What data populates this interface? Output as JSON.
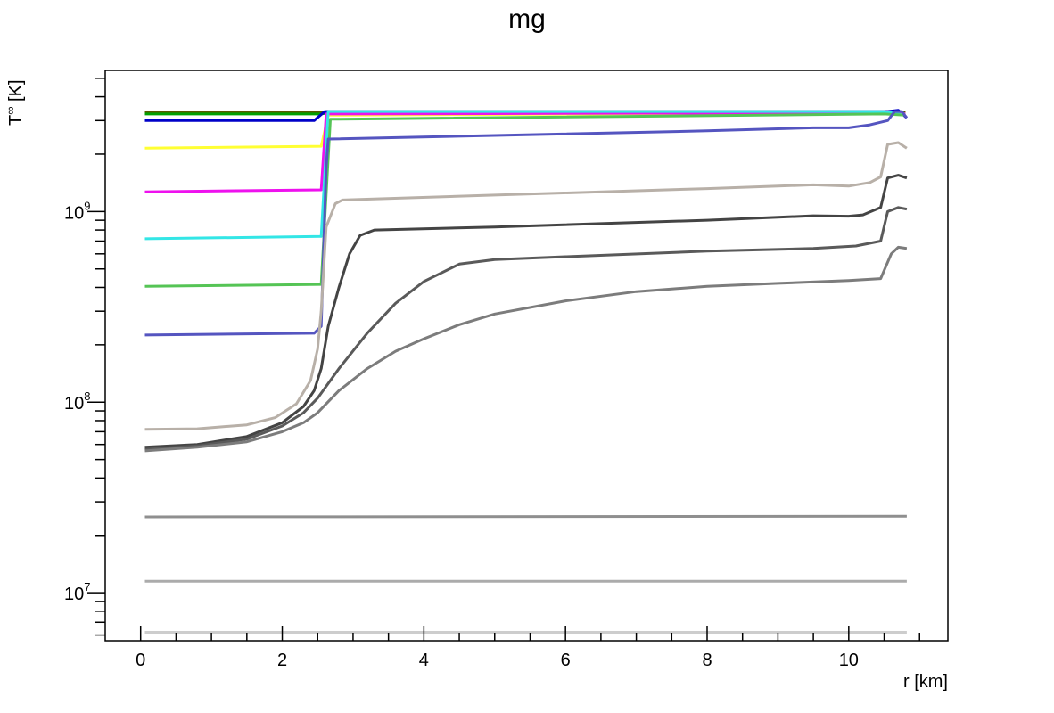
{
  "chart_data": {
    "type": "line",
    "title": "mg",
    "xlabel": "r [km]",
    "ylabel_main": "T",
    "ylabel_sup": "∞",
    "ylabel_unit": " [K]",
    "yscale": "log",
    "xlim": [
      -0.5,
      11.4
    ],
    "ylim": [
      5600000.0,
      5500000000.0
    ],
    "xticks": [
      0,
      2,
      4,
      6,
      8,
      10
    ],
    "xtick_labels": [
      "0",
      "2",
      "4",
      "6",
      "8",
      "10"
    ],
    "yticks": [
      {
        "value": 10000000.0,
        "base": "10",
        "exp": "7"
      },
      {
        "value": 100000000.0,
        "base": "10",
        "exp": "8"
      },
      {
        "value": 1000000000.0,
        "base": "10",
        "exp": "9"
      }
    ],
    "grid": false,
    "legend": "none",
    "series": [
      {
        "color": "#5a5a00",
        "points": [
          [
            0.06,
            3300000000.0
          ],
          [
            2.55,
            3300000000.0
          ],
          [
            2.65,
            3350000000.0
          ],
          [
            10.5,
            3350000000.0
          ],
          [
            10.8,
            3300000000.0
          ]
        ]
      },
      {
        "color": "#00a000",
        "points": [
          [
            0.06,
            3250000000.0
          ],
          [
            2.55,
            3250000000.0
          ],
          [
            2.65,
            3300000000.0
          ],
          [
            10.5,
            3300000000.0
          ],
          [
            10.8,
            3250000000.0
          ]
        ]
      },
      {
        "color": "#0000c8",
        "points": [
          [
            0.06,
            3000000000.0
          ],
          [
            2.2,
            3000000000.0
          ],
          [
            2.45,
            3000000000.0
          ],
          [
            2.6,
            3350000000.0
          ],
          [
            10.55,
            3350000000.0
          ],
          [
            10.7,
            3400000000.0
          ],
          [
            10.82,
            3100000000.0
          ]
        ]
      },
      {
        "color": "#ffff33",
        "points": [
          [
            0.06,
            2150000000.0
          ],
          [
            2.55,
            2200000000.0
          ],
          [
            2.65,
            3200000000.0
          ],
          [
            10.5,
            3300000000.0
          ],
          [
            10.8,
            3250000000.0
          ]
        ]
      },
      {
        "color": "#ee11ee",
        "points": [
          [
            0.06,
            1270000000.0
          ],
          [
            2.55,
            1300000000.0
          ],
          [
            2.62,
            3250000000.0
          ],
          [
            10.5,
            3300000000.0
          ],
          [
            10.8,
            3250000000.0
          ]
        ]
      },
      {
        "color": "#33e6e6",
        "points": [
          [
            0.06,
            720000000.0
          ],
          [
            2.55,
            740000000.0
          ],
          [
            2.65,
            3350000000.0
          ],
          [
            10.5,
            3350000000.0
          ],
          [
            10.8,
            3200000000.0
          ]
        ]
      },
      {
        "color": "#55c455",
        "points": [
          [
            0.06,
            405000000.0
          ],
          [
            2.55,
            415000000.0
          ],
          [
            2.68,
            3050000000.0
          ],
          [
            10.5,
            3250000000.0
          ],
          [
            10.8,
            3200000000.0
          ]
        ]
      },
      {
        "color": "#5555c0",
        "points": [
          [
            0.06,
            225000000.0
          ],
          [
            2.45,
            230000000.0
          ],
          [
            2.55,
            250000000.0
          ],
          [
            2.62,
            1700000000.0
          ],
          [
            2.65,
            2400000000.0
          ],
          [
            8.0,
            2650000000.0
          ],
          [
            9.5,
            2750000000.0
          ],
          [
            10.0,
            2750000000.0
          ],
          [
            10.3,
            2850000000.0
          ],
          [
            10.55,
            3000000000.0
          ],
          [
            10.65,
            3350000000.0
          ],
          [
            10.75,
            3350000000.0
          ],
          [
            10.82,
            3100000000.0
          ]
        ]
      },
      {
        "color": "#b8b0a8",
        "points": [
          [
            0.06,
            72000000.0
          ],
          [
            0.8,
            72500000.0
          ],
          [
            1.5,
            76000000.0
          ],
          [
            1.9,
            83000000.0
          ],
          [
            2.2,
            98000000.0
          ],
          [
            2.4,
            130000000.0
          ],
          [
            2.5,
            190000000.0
          ],
          [
            2.55,
            300000000.0
          ],
          [
            2.62,
            830000000.0
          ],
          [
            2.75,
            1100000000.0
          ],
          [
            2.85,
            1150000000.0
          ],
          [
            5.0,
            1220000000.0
          ],
          [
            8.0,
            1320000000.0
          ],
          [
            9.5,
            1380000000.0
          ],
          [
            10.0,
            1360000000.0
          ],
          [
            10.3,
            1420000000.0
          ],
          [
            10.45,
            1520000000.0
          ],
          [
            10.55,
            2250000000.0
          ],
          [
            10.7,
            2300000000.0
          ],
          [
            10.82,
            2150000000.0
          ]
        ]
      },
      {
        "color": "#444444",
        "points": [
          [
            0.06,
            58000000.0
          ],
          [
            0.8,
            60000000.0
          ],
          [
            1.5,
            66000000.0
          ],
          [
            2.0,
            78000000.0
          ],
          [
            2.3,
            95000000.0
          ],
          [
            2.45,
            115000000.0
          ],
          [
            2.55,
            150000000.0
          ],
          [
            2.65,
            250000000.0
          ],
          [
            2.8,
            400000000.0
          ],
          [
            2.95,
            600000000.0
          ],
          [
            3.1,
            750000000.0
          ],
          [
            3.3,
            800000000.0
          ],
          [
            5.0,
            830000000.0
          ],
          [
            8.0,
            900000000.0
          ],
          [
            9.5,
            950000000.0
          ],
          [
            10.0,
            945000000.0
          ],
          [
            10.2,
            960000000.0
          ],
          [
            10.45,
            1050000000.0
          ],
          [
            10.55,
            1500000000.0
          ],
          [
            10.7,
            1550000000.0
          ],
          [
            10.82,
            1500000000.0
          ]
        ]
      },
      {
        "color": "#5a5a5a",
        "points": [
          [
            0.06,
            56500000.0
          ],
          [
            0.8,
            59000000.0
          ],
          [
            1.5,
            64000000.0
          ],
          [
            2.0,
            75000000.0
          ],
          [
            2.3,
            88000000.0
          ],
          [
            2.5,
            105000000.0
          ],
          [
            2.8,
            150000000.0
          ],
          [
            3.2,
            230000000.0
          ],
          [
            3.6,
            330000000.0
          ],
          [
            4.0,
            430000000.0
          ],
          [
            4.5,
            530000000.0
          ],
          [
            5.0,
            560000000.0
          ],
          [
            6.0,
            580000000.0
          ],
          [
            8.0,
            620000000.0
          ],
          [
            9.5,
            640000000.0
          ],
          [
            10.1,
            660000000.0
          ],
          [
            10.45,
            700000000.0
          ],
          [
            10.55,
            1000000000.0
          ],
          [
            10.7,
            1050000000.0
          ],
          [
            10.82,
            1030000000.0
          ]
        ]
      },
      {
        "color": "#7c7c7c",
        "points": [
          [
            0.06,
            55500000.0
          ],
          [
            0.8,
            58000000.0
          ],
          [
            1.5,
            62000000.0
          ],
          [
            2.0,
            70000000.0
          ],
          [
            2.3,
            78000000.0
          ],
          [
            2.5,
            88000000.0
          ],
          [
            2.8,
            115000000.0
          ],
          [
            3.2,
            150000000.0
          ],
          [
            3.6,
            185000000.0
          ],
          [
            4.0,
            215000000.0
          ],
          [
            4.5,
            255000000.0
          ],
          [
            5.0,
            290000000.0
          ],
          [
            6.0,
            340000000.0
          ],
          [
            7.0,
            380000000.0
          ],
          [
            8.0,
            405000000.0
          ],
          [
            9.0,
            420000000.0
          ],
          [
            10.0,
            435000000.0
          ],
          [
            10.45,
            445000000.0
          ],
          [
            10.6,
            600000000.0
          ],
          [
            10.7,
            650000000.0
          ],
          [
            10.82,
            640000000.0
          ]
        ]
      },
      {
        "color": "#8f8f8f",
        "points": [
          [
            0.06,
            25000000.0
          ],
          [
            10.82,
            25200000.0
          ]
        ]
      },
      {
        "color": "#ababab",
        "points": [
          [
            0.06,
            11500000.0
          ],
          [
            10.82,
            11500000.0
          ]
        ]
      },
      {
        "color": "#cdcdcd",
        "points": [
          [
            0.06,
            6200000.0
          ],
          [
            10.82,
            6200000.0
          ]
        ]
      }
    ]
  }
}
